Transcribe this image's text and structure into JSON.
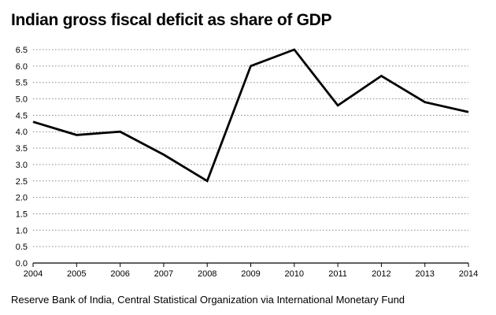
{
  "chart_data": {
    "type": "line",
    "title": "Indian gross fiscal deficit as share of GDP",
    "source": "Reserve Bank of India, Central Statistical Organization via International Monetary Fund",
    "xlabel": "",
    "ylabel": "",
    "x": [
      2004,
      2005,
      2006,
      2007,
      2008,
      2009,
      2010,
      2011,
      2012,
      2013,
      2014
    ],
    "series": [
      {
        "name": "Gross fiscal deficit (% of GDP)",
        "values": [
          4.3,
          3.9,
          4.0,
          3.3,
          2.5,
          6.0,
          6.5,
          4.8,
          5.7,
          4.9,
          4.6
        ]
      }
    ],
    "ylim": [
      0,
      6.5
    ],
    "yticks": [
      "0.0",
      "0.5",
      "1.0",
      "1.5",
      "2.0",
      "2.5",
      "3.0",
      "3.5",
      "4.0",
      "4.5",
      "5.0",
      "5.5",
      "6.0",
      "6.5"
    ],
    "xticks": [
      "2004",
      "2005",
      "2006",
      "2007",
      "2008",
      "2009",
      "2010",
      "2011",
      "2012",
      "2013",
      "2014"
    ],
    "grid": true,
    "line_color": "#000000",
    "grid_color": "#888888"
  }
}
